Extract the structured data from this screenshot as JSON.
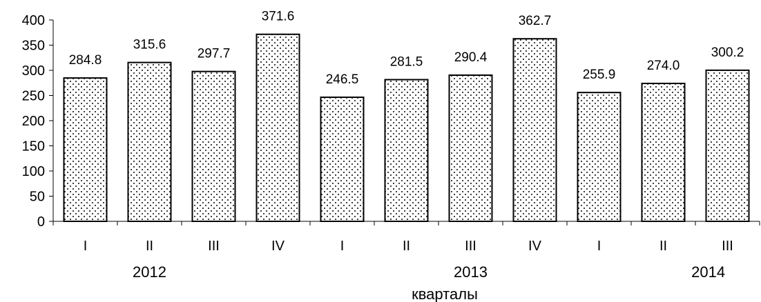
{
  "chart_data": {
    "type": "bar",
    "categories": [
      "I",
      "II",
      "III",
      "IV",
      "I",
      "II",
      "III",
      "IV",
      "I",
      "II",
      "III"
    ],
    "groups": [
      {
        "label": "2012",
        "categories": [
          "I",
          "II",
          "III",
          "IV"
        ]
      },
      {
        "label": "2013",
        "categories": [
          "I",
          "II",
          "III",
          "IV"
        ]
      },
      {
        "label": "2014",
        "categories": [
          "I",
          "II",
          "III"
        ]
      }
    ],
    "values": [
      284.8,
      315.6,
      297.7,
      371.6,
      246.5,
      281.5,
      290.4,
      362.7,
      255.9,
      274.0,
      300.2
    ],
    "value_labels": [
      "284.8",
      "315.6",
      "297.7",
      "371.6",
      "246.5",
      "281.5",
      "290.4",
      "362.7",
      "255.9",
      "274.0",
      "300.2"
    ],
    "title": "",
    "xlabel": "кварталы",
    "ylabel": "",
    "ylim": [
      0,
      400
    ],
    "yticks": [
      0,
      50,
      100,
      150,
      200,
      250,
      300,
      350,
      400
    ],
    "grid": false,
    "legend": "none",
    "colors": {
      "bar_fill": "#ffffff",
      "bar_dots": "#000000",
      "bar_stroke": "#000000",
      "axis": "#000000"
    }
  }
}
